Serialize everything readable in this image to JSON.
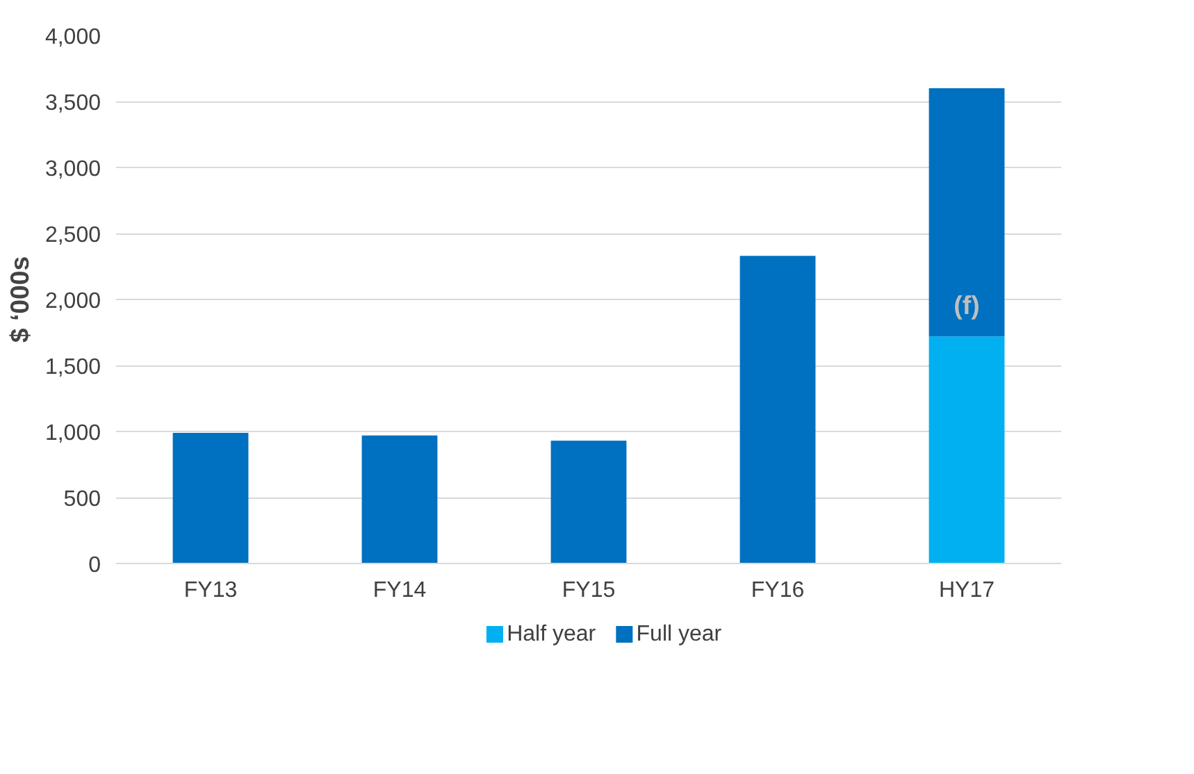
{
  "chart_data": {
    "type": "bar",
    "stacked": true,
    "ylabel": "$ ‘000s",
    "categories": [
      "FY13",
      "FY14",
      "FY15",
      "FY16",
      "HY17"
    ],
    "series": [
      {
        "name": "Half year",
        "color": "#00b0f0",
        "values": [
          null,
          null,
          null,
          null,
          1720
        ]
      },
      {
        "name": "Full year",
        "color": "#0070c0",
        "values": [
          990,
          970,
          930,
          2330,
          1880
        ]
      }
    ],
    "ylim": [
      0,
      4000
    ],
    "yticks": [
      {
        "value": 0,
        "label": "0"
      },
      {
        "value": 500,
        "label": "500"
      },
      {
        "value": 1000,
        "label": "1,000"
      },
      {
        "value": 1500,
        "label": "1,500"
      },
      {
        "value": 2000,
        "label": "2,000"
      },
      {
        "value": 2500,
        "label": "2,500"
      },
      {
        "value": 3000,
        "label": "3,000"
      },
      {
        "value": 3500,
        "label": "3,500"
      },
      {
        "value": 4000,
        "label": "4,000"
      }
    ],
    "grid": "y",
    "legend": "bottom",
    "annotations": [
      "(f)"
    ]
  }
}
